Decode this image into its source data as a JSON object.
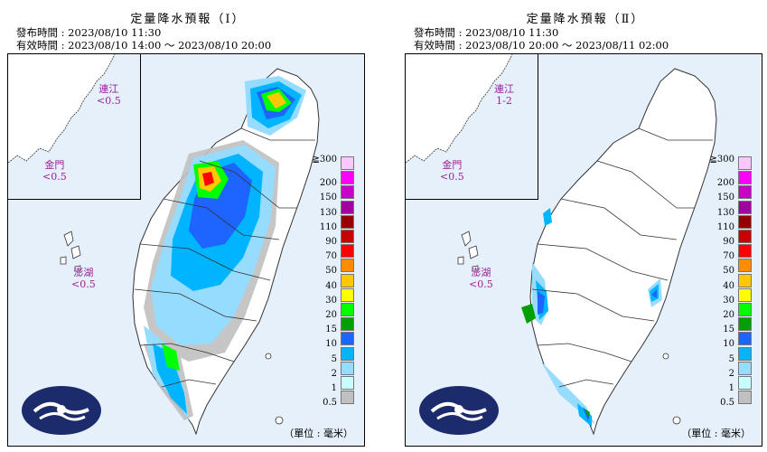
{
  "panels": [
    {
      "title": "定量降水預報（Ⅰ）",
      "issue_time": "發布時間 : 2023/08/10 11:30",
      "valid_time": "有效時間 : 2023/08/10 14:00 ～ 2023/08/10 20:00",
      "labels": {
        "matsu_name": "連江",
        "matsu_value": "<0.5",
        "kinmen_name": "金門",
        "kinmen_value": "<0.5",
        "penghu_name": "澎湖",
        "penghu_value": "<0.5"
      },
      "unit": "（單位 : 毫米）"
    },
    {
      "title": "定量降水預報（Ⅱ）",
      "issue_time": "發布時間 : 2023/08/10 11:30",
      "valid_time": "有效時間 : 2023/08/10 20:00 ～ 2023/08/11 02:00",
      "labels": {
        "matsu_name": "連江",
        "matsu_value": "1-2",
        "kinmen_name": "金門",
        "kinmen_value": "<0.5",
        "penghu_name": "澎湖",
        "penghu_value": "<0.5"
      },
      "unit": "（單位 : 毫米）"
    }
  ],
  "legend": {
    "levels": [
      "≧300",
      "200",
      "150",
      "130",
      "110",
      "90",
      "70",
      "50",
      "40",
      "30",
      "20",
      "15",
      "10",
      "5",
      "2",
      "1",
      "0.5"
    ],
    "colors": [
      "#fcc8fc",
      "#fc00fc",
      "#c800c8",
      "#a000a0",
      "#960000",
      "#c80000",
      "#ff0000",
      "#ff8c00",
      "#ffc800",
      "#ffff00",
      "#00ff00",
      "#00a000",
      "#1e64ff",
      "#00b4ff",
      "#96dcff",
      "#c8ffff",
      "#c0c0c0"
    ]
  },
  "colors": {
    "sea": "#e6f0fb",
    "land": "#ffffff",
    "logo": "#1c2b6b"
  }
}
